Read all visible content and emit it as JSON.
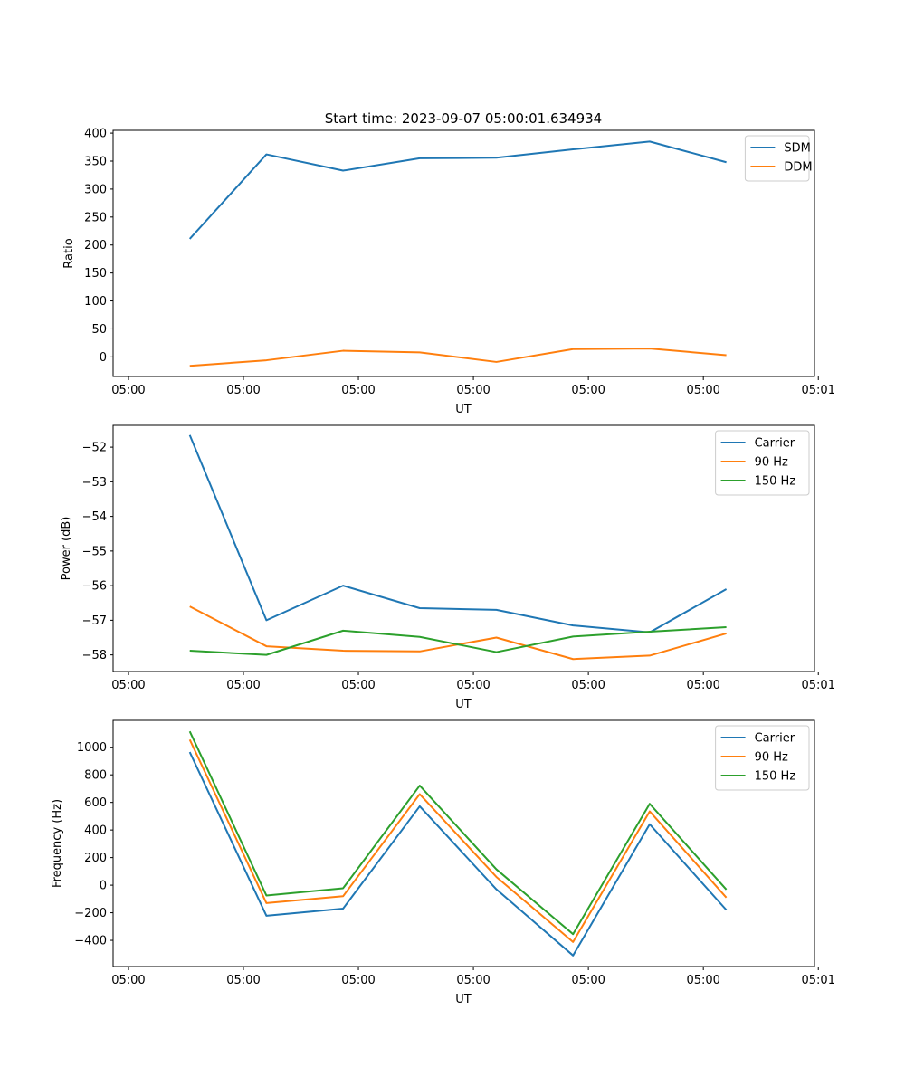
{
  "figure_title": "Start time: 2023-09-07 05:00:01.634934",
  "colors": {
    "blue": "#1f77b4",
    "orange": "#ff7f0e",
    "green": "#2ca02c"
  },
  "chart_data": [
    {
      "type": "line",
      "title": "Start time: 2023-09-07 05:00:01.634934",
      "xlabel": "UT",
      "ylabel": "Ratio",
      "x": [
        1,
        2,
        3,
        4,
        5,
        6,
        7,
        8
      ],
      "xlim": [
        0,
        9.15
      ],
      "x_ticks": [
        0.2,
        1.7,
        3.2,
        4.7,
        6.2,
        7.7,
        9.2
      ],
      "x_tick_labels": [
        "05:00",
        "05:00",
        "05:00",
        "05:00",
        "05:00",
        "05:00",
        "05:01"
      ],
      "ylim": [
        -35,
        405
      ],
      "y_ticks": [
        0,
        50,
        100,
        150,
        200,
        250,
        300,
        350,
        400
      ],
      "y_tick_labels": [
        "0",
        "50",
        "100",
        "150",
        "200",
        "250",
        "300",
        "350",
        "400"
      ],
      "legend_position": "top-right",
      "series": [
        {
          "name": "SDM",
          "color": "#1f77b4",
          "values": [
            211,
            362,
            333,
            355,
            356,
            371,
            385,
            348
          ]
        },
        {
          "name": "DDM",
          "color": "#ff7f0e",
          "values": [
            -16,
            -6,
            11,
            8,
            -9,
            14,
            15,
            3
          ]
        }
      ]
    },
    {
      "type": "line",
      "title": "",
      "xlabel": "UT",
      "ylabel": "Power (dB)",
      "x": [
        1,
        2,
        3,
        4,
        5,
        6,
        7,
        8
      ],
      "xlim": [
        0,
        9.15
      ],
      "x_ticks": [
        0.2,
        1.7,
        3.2,
        4.7,
        6.2,
        7.7,
        9.2
      ],
      "x_tick_labels": [
        "05:00",
        "05:00",
        "05:00",
        "05:00",
        "05:00",
        "05:00",
        "05:01"
      ],
      "ylim": [
        -58.48,
        -51.37
      ],
      "y_ticks": [
        -58,
        -57,
        -56,
        -55,
        -54,
        -53,
        -52
      ],
      "y_tick_labels": [
        "−58",
        "−57",
        "−56",
        "−55",
        "−54",
        "−53",
        "−52"
      ],
      "legend_position": "top-right",
      "series": [
        {
          "name": "Carrier",
          "color": "#1f77b4",
          "values": [
            -51.65,
            -57.0,
            -56.0,
            -56.65,
            -56.7,
            -57.15,
            -57.35,
            -56.1
          ]
        },
        {
          "name": "90 Hz",
          "color": "#ff7f0e",
          "values": [
            -56.6,
            -57.75,
            -57.88,
            -57.9,
            -57.5,
            -58.12,
            -58.02,
            -57.38
          ]
        },
        {
          "name": "150 Hz",
          "color": "#2ca02c",
          "values": [
            -57.88,
            -58.0,
            -57.3,
            -57.48,
            -57.92,
            -57.47,
            -57.33,
            -57.2
          ]
        }
      ]
    },
    {
      "type": "line",
      "title": "",
      "xlabel": "UT",
      "ylabel": "Frequency (Hz)",
      "x": [
        1,
        2,
        3,
        4,
        5,
        6,
        7,
        8
      ],
      "xlim": [
        0,
        9.15
      ],
      "x_ticks": [
        0.2,
        1.7,
        3.2,
        4.7,
        6.2,
        7.7,
        9.2
      ],
      "x_tick_labels": [
        "05:00",
        "05:00",
        "05:00",
        "05:00",
        "05:00",
        "05:00",
        "05:01"
      ],
      "ylim": [
        -590,
        1195
      ],
      "y_ticks": [
        -400,
        -200,
        0,
        200,
        400,
        600,
        800,
        1000
      ],
      "y_tick_labels": [
        "−400",
        "−200",
        "0",
        "200",
        "400",
        "600",
        "800",
        "1000"
      ],
      "legend_position": "top-right",
      "series": [
        {
          "name": "Carrier",
          "color": "#1f77b4",
          "values": [
            965,
            -222,
            -170,
            572,
            -30,
            -510,
            442,
            -180
          ]
        },
        {
          "name": "90 Hz",
          "color": "#ff7f0e",
          "values": [
            1055,
            -130,
            -80,
            660,
            60,
            -412,
            535,
            -90
          ]
        },
        {
          "name": "150 Hz",
          "color": "#2ca02c",
          "values": [
            1115,
            -75,
            -22,
            722,
            115,
            -355,
            590,
            -32
          ]
        }
      ]
    }
  ]
}
